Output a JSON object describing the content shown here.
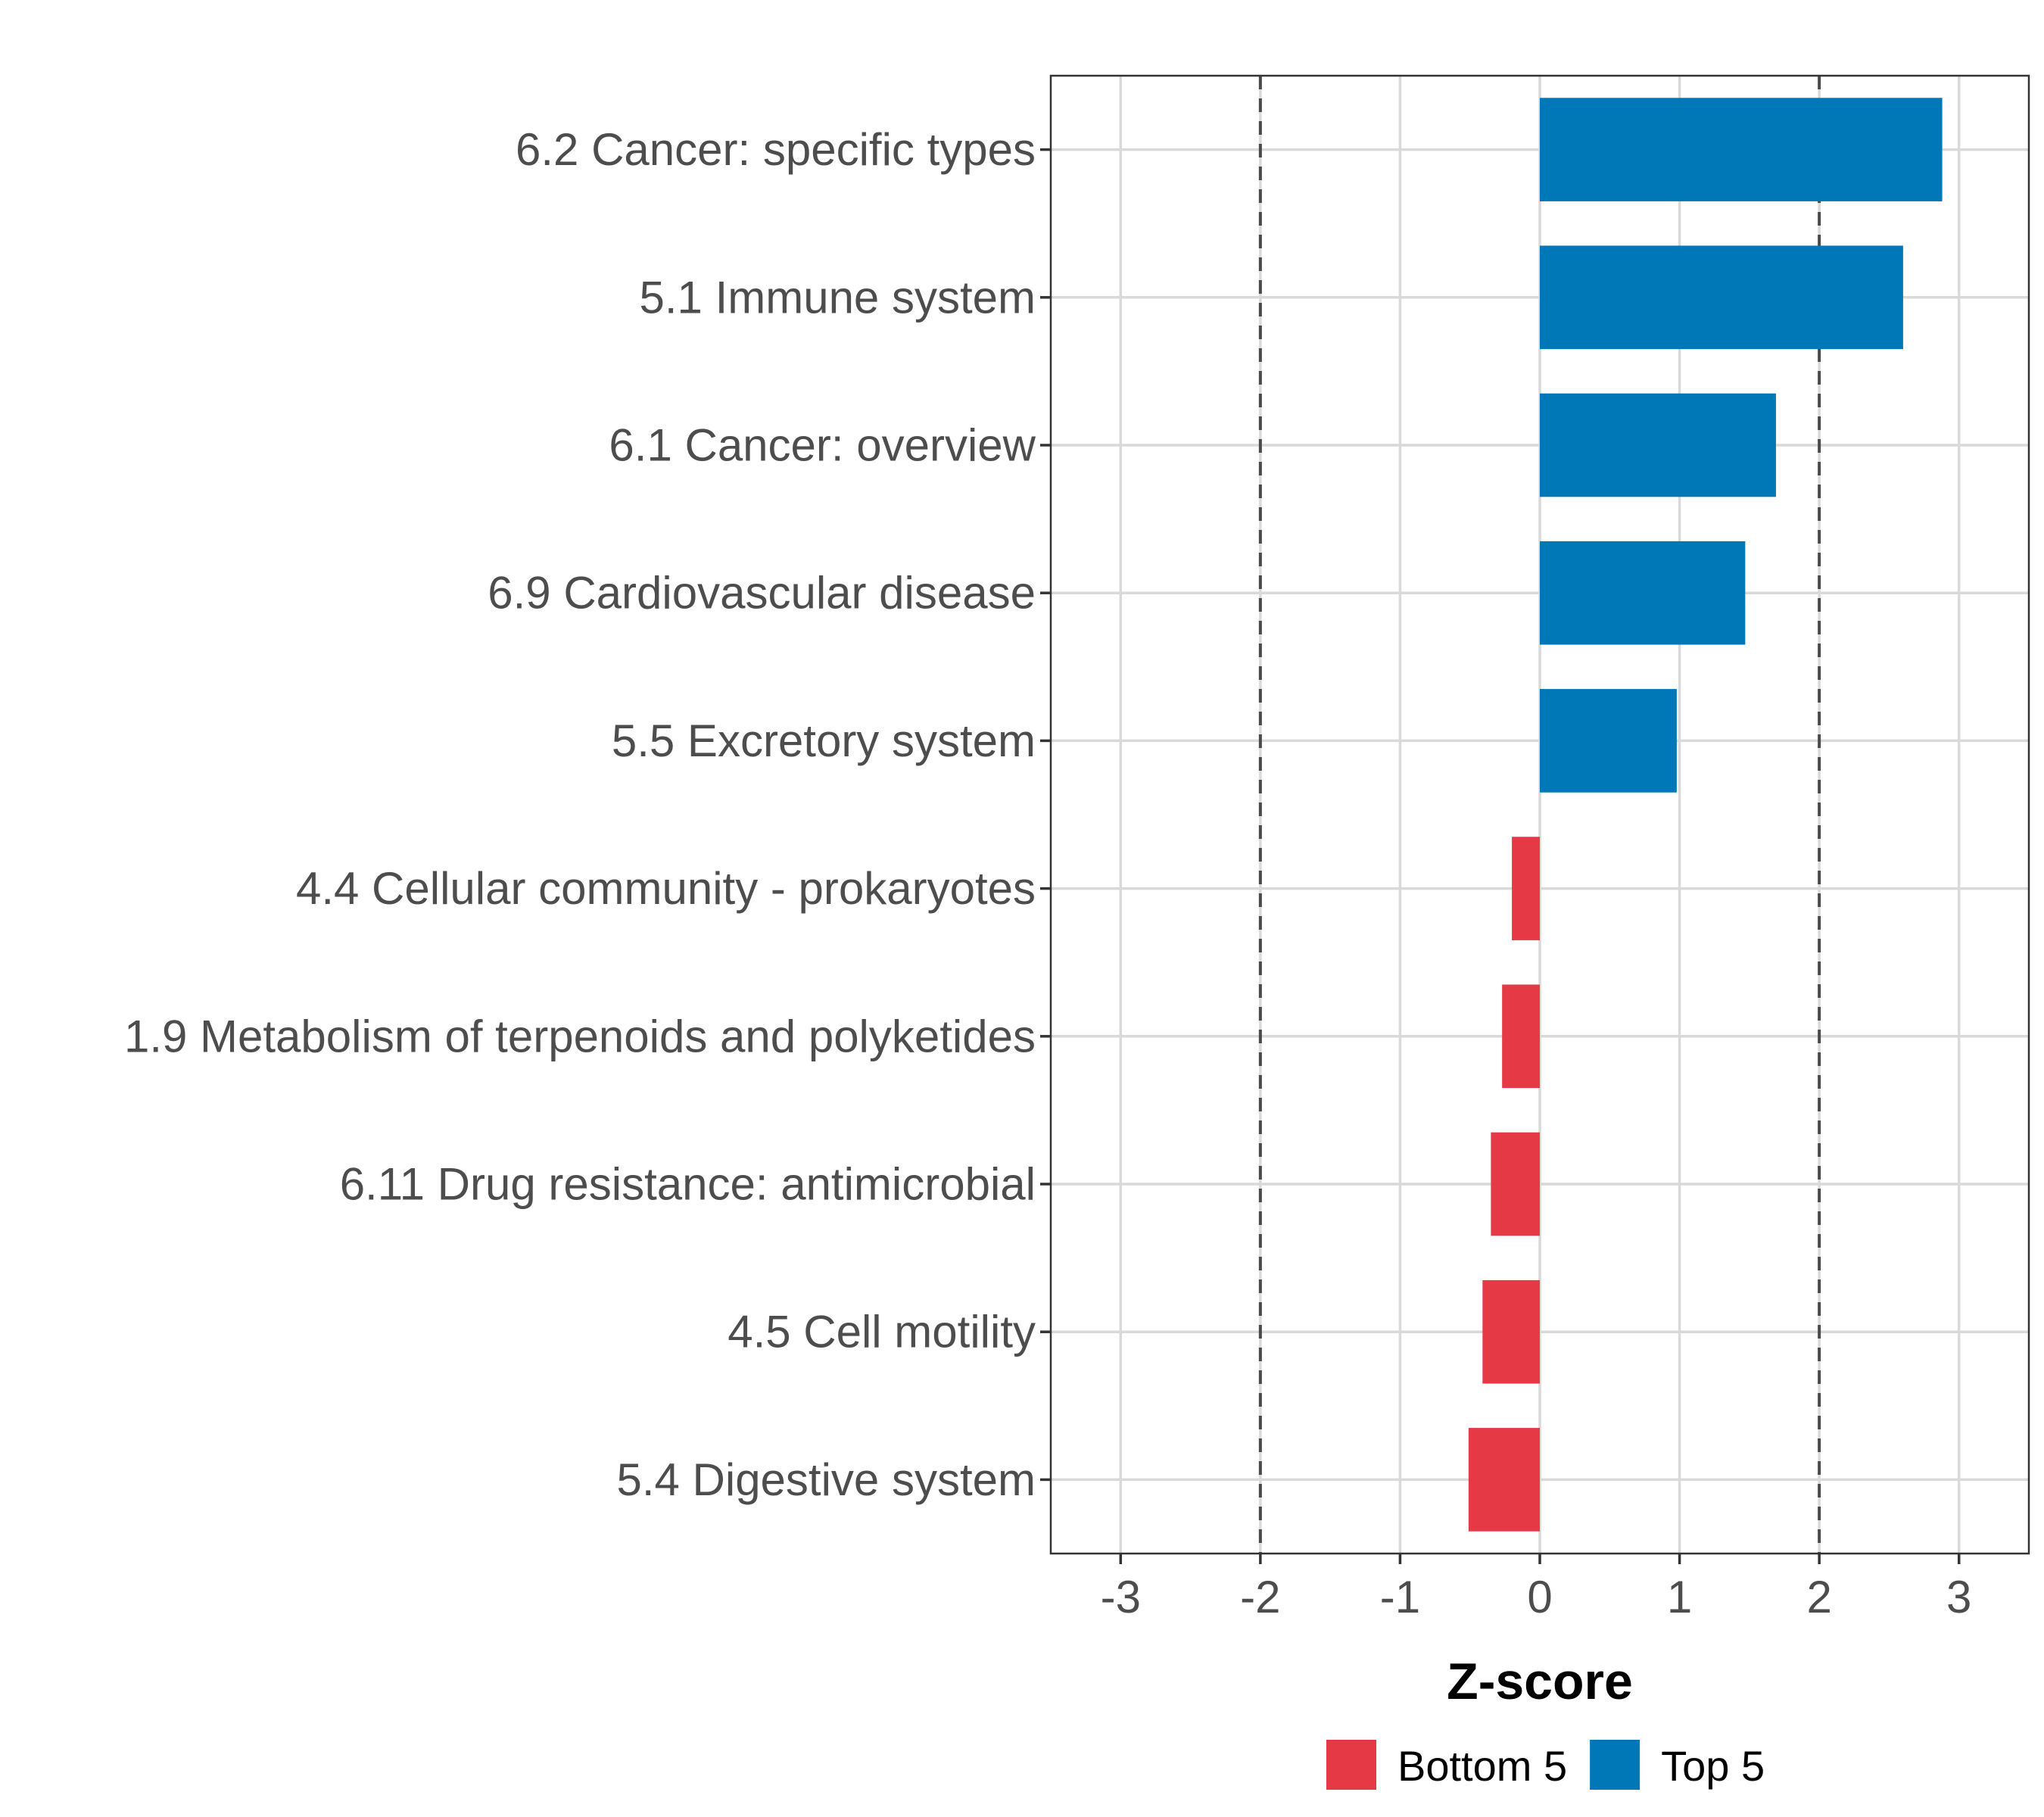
{
  "chart_data": {
    "type": "bar",
    "orientation": "horizontal",
    "xlabel": "Z-score",
    "ylabel": "",
    "xlim": [
      -3.5,
      3.5
    ],
    "xticks": [
      -3,
      -2,
      -1,
      0,
      1,
      2,
      3
    ],
    "xtick_labels": [
      "-3",
      "-2",
      "-1",
      "0",
      "1",
      "2",
      "3"
    ],
    "reference_lines": [
      -2,
      2
    ],
    "grid": true,
    "categories": [
      "6.2 Cancer: specific types",
      "5.1 Immune system",
      "6.1 Cancer: overview",
      "6.9 Cardiovascular disease",
      "5.5 Excretory system",
      "4.4 Cellular community - prokaryotes",
      "1.9 Metabolism of terpenoids and polyketides",
      "6.11 Drug resistance: antimicrobial",
      "4.5 Cell motility",
      "5.4 Digestive system"
    ],
    "values": [
      2.88,
      2.6,
      1.69,
      1.47,
      0.98,
      -0.2,
      -0.27,
      -0.35,
      -0.41,
      -0.51
    ],
    "groups": [
      "Top 5",
      "Top 5",
      "Top 5",
      "Top 5",
      "Top 5",
      "Bottom 5",
      "Bottom 5",
      "Bottom 5",
      "Bottom 5",
      "Bottom 5"
    ],
    "legend": [
      {
        "name": "Bottom 5",
        "color": "#e63946"
      },
      {
        "name": "Top 5",
        "color": "#0077b6"
      }
    ],
    "legend_position": "bottom"
  }
}
